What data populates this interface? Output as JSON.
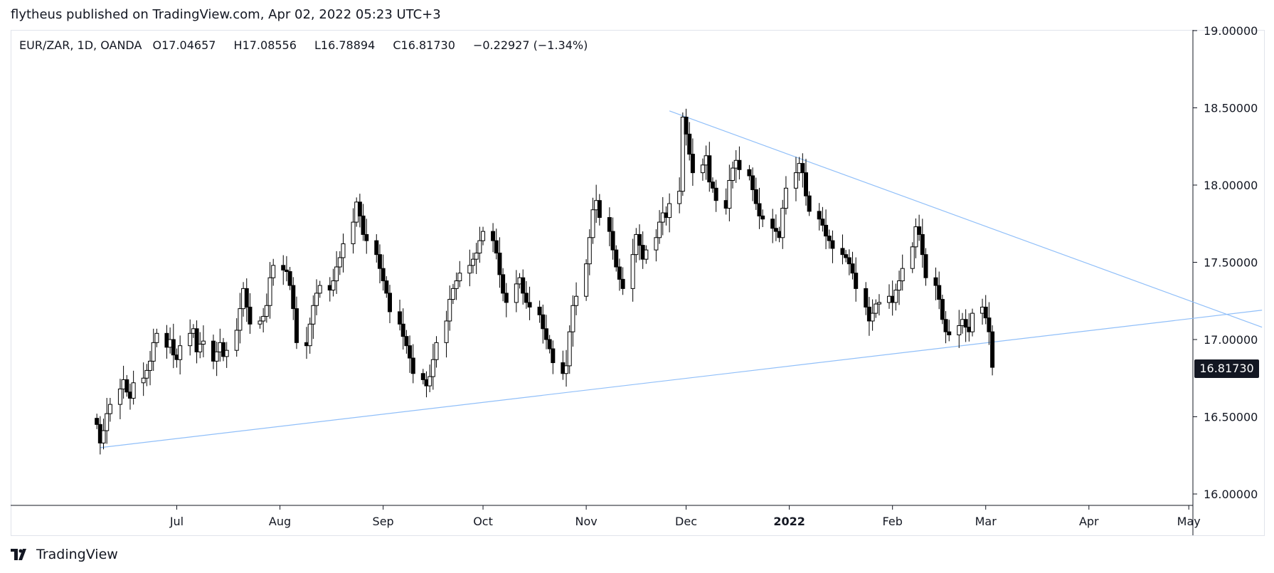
{
  "header": {
    "published": "flytheus published on TradingView.com, Apr 02, 2022 05:23 UTC+3"
  },
  "legend": {
    "symbol": "EUR/ZAR, 1D, OANDA",
    "o_label": "O",
    "o": "17.04657",
    "h_label": "H",
    "h": "17.08556",
    "l_label": "L",
    "l": "16.78894",
    "c_label": "C",
    "c": "16.81730",
    "change": "−0.22927 (−1.34%)"
  },
  "price_tag": "16.81730",
  "footer": {
    "brand": "TradingView",
    "logo_icon": "tradingview-logo-icon"
  },
  "colors": {
    "up_fill": "#ffffff",
    "down_fill": "#000000",
    "wick": "#000000",
    "trendline": "#90bff9",
    "axis_text": "#131722"
  },
  "chart_data": {
    "type": "candlestick",
    "symbol": "EUR/ZAR",
    "interval": "1D",
    "exchange": "OANDA",
    "y_ticks": [
      "19.00000",
      "18.50000",
      "18.00000",
      "17.50000",
      "17.00000",
      "16.50000",
      "16.00000"
    ],
    "x_ticks": [
      "Jul",
      "Aug",
      "Sep",
      "Oct",
      "Nov",
      "Dec",
      "2022",
      "Feb",
      "Mar",
      "Apr",
      "May"
    ],
    "ylim": [
      16.0,
      19.0
    ],
    "trendlines": [
      {
        "from": {
          "date": "2021-11-26",
          "price": 18.48
        },
        "to": {
          "date": "2022-05-23",
          "price": 17.08
        }
      },
      {
        "from": {
          "date": "2021-06-08",
          "price": 16.3
        },
        "to": {
          "date": "2022-05-23",
          "price": 17.19
        }
      }
    ],
    "close_series_start": "2021-06-07",
    "closes": [
      16.45,
      16.33,
      16.41,
      16.52,
      16.58,
      16.68,
      16.74,
      16.66,
      16.62,
      16.72,
      16.75,
      16.8,
      16.86,
      16.98,
      17.04,
      16.95,
      17.0,
      16.9,
      16.87,
      16.96,
      17.04,
      17.07,
      16.92,
      16.97,
      16.99,
      16.86,
      16.92,
      16.98,
      16.89,
      16.93,
      17.06,
      17.2,
      17.33,
      17.21,
      17.1,
      17.12,
      17.15,
      17.22,
      17.4,
      17.48,
      17.45,
      17.44,
      17.35,
      17.2,
      16.98,
      16.96,
      17.1,
      17.22,
      17.3,
      17.35,
      17.32,
      17.38,
      17.47,
      17.53,
      17.62,
      17.76,
      17.89,
      17.8,
      17.68,
      17.64,
      17.55,
      17.46,
      17.38,
      17.3,
      17.18,
      17.1,
      17.02,
      16.96,
      16.88,
      16.78,
      16.74,
      16.7,
      16.76,
      16.87,
      16.98,
      17.12,
      17.26,
      17.33,
      17.38,
      17.43,
      17.48,
      17.52,
      17.56,
      17.64,
      17.7,
      17.64,
      17.56,
      17.42,
      17.3,
      17.24,
      17.36,
      17.4,
      17.3,
      17.24,
      17.21,
      17.16,
      17.07,
      17.0,
      16.94,
      16.85,
      16.78,
      16.83,
      17.05,
      17.22,
      17.28,
      17.49,
      17.66,
      17.84,
      17.9,
      17.79,
      17.7,
      17.58,
      17.47,
      17.39,
      17.33,
      17.55,
      17.68,
      17.61,
      17.52,
      17.58,
      17.66,
      17.76,
      17.82,
      17.79,
      17.88,
      17.96,
      18.44,
      18.33,
      18.2,
      18.08,
      18.13,
      18.19,
      18.02,
      17.98,
      17.9,
      17.85,
      18.03,
      18.11,
      18.16,
      18.1,
      18.06,
      17.97,
      17.88,
      17.8,
      17.78,
      17.72,
      17.7,
      17.66,
      17.85,
      17.98,
      18.08,
      18.14,
      18.08,
      17.93,
      17.83,
      17.78,
      17.74,
      17.67,
      17.64,
      17.59,
      17.55,
      17.53,
      17.49,
      17.43,
      17.33,
      17.21,
      17.12,
      17.17,
      17.23,
      17.24,
      17.28,
      17.24,
      17.32,
      17.38,
      17.46,
      17.6,
      17.73,
      17.68,
      17.55,
      17.4,
      17.35,
      17.26,
      17.13,
      17.05,
      17.03,
      17.09,
      17.13,
      17.08,
      17.05,
      17.17,
      17.21,
      17.14,
      17.05,
      16.82
    ]
  }
}
